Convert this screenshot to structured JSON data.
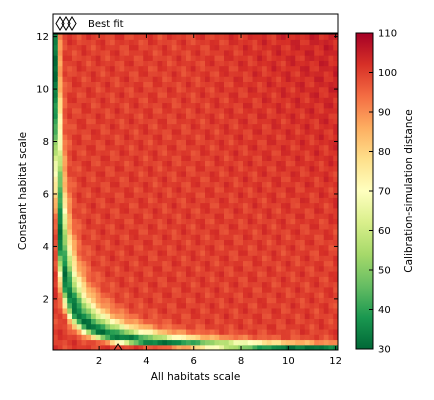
{
  "chart_data": {
    "type": "heatmap",
    "title": "",
    "xlabel": "All habitats scale",
    "ylabel": "Constant habitat scale",
    "xlim": [
      0.05,
      12.1
    ],
    "ylim": [
      0.05,
      12.1
    ],
    "xticks": [
      2,
      4,
      6,
      8,
      10,
      12
    ],
    "yticks": [
      2,
      4,
      6,
      8,
      10,
      12
    ],
    "grid": false,
    "legend": {
      "placement": "top",
      "entries": [
        {
          "label": "Best fit",
          "marker": "triangle-outline",
          "marker_color": "#000000"
        }
      ]
    },
    "best_fit_point": {
      "x": 2.8,
      "y": 0.05
    },
    "colorbar": {
      "label": "Calibration-simulation distance",
      "vmin": 30,
      "vmax": 110,
      "ticks": [
        30,
        40,
        50,
        60,
        70,
        80,
        90,
        100,
        110
      ],
      "colormap": "RdYlGn_r"
    },
    "description_of_field": {
      "low_region": "narrow hyperbolic band near x*y ≈ 1.5 with values 30-50",
      "high_region": "most of the plane with values 95-105, peaks near 108 at x≈12, y≈9-10"
    }
  },
  "colors": {
    "low": "#006837",
    "mid": "#ffffbf",
    "high": "#a50026"
  }
}
